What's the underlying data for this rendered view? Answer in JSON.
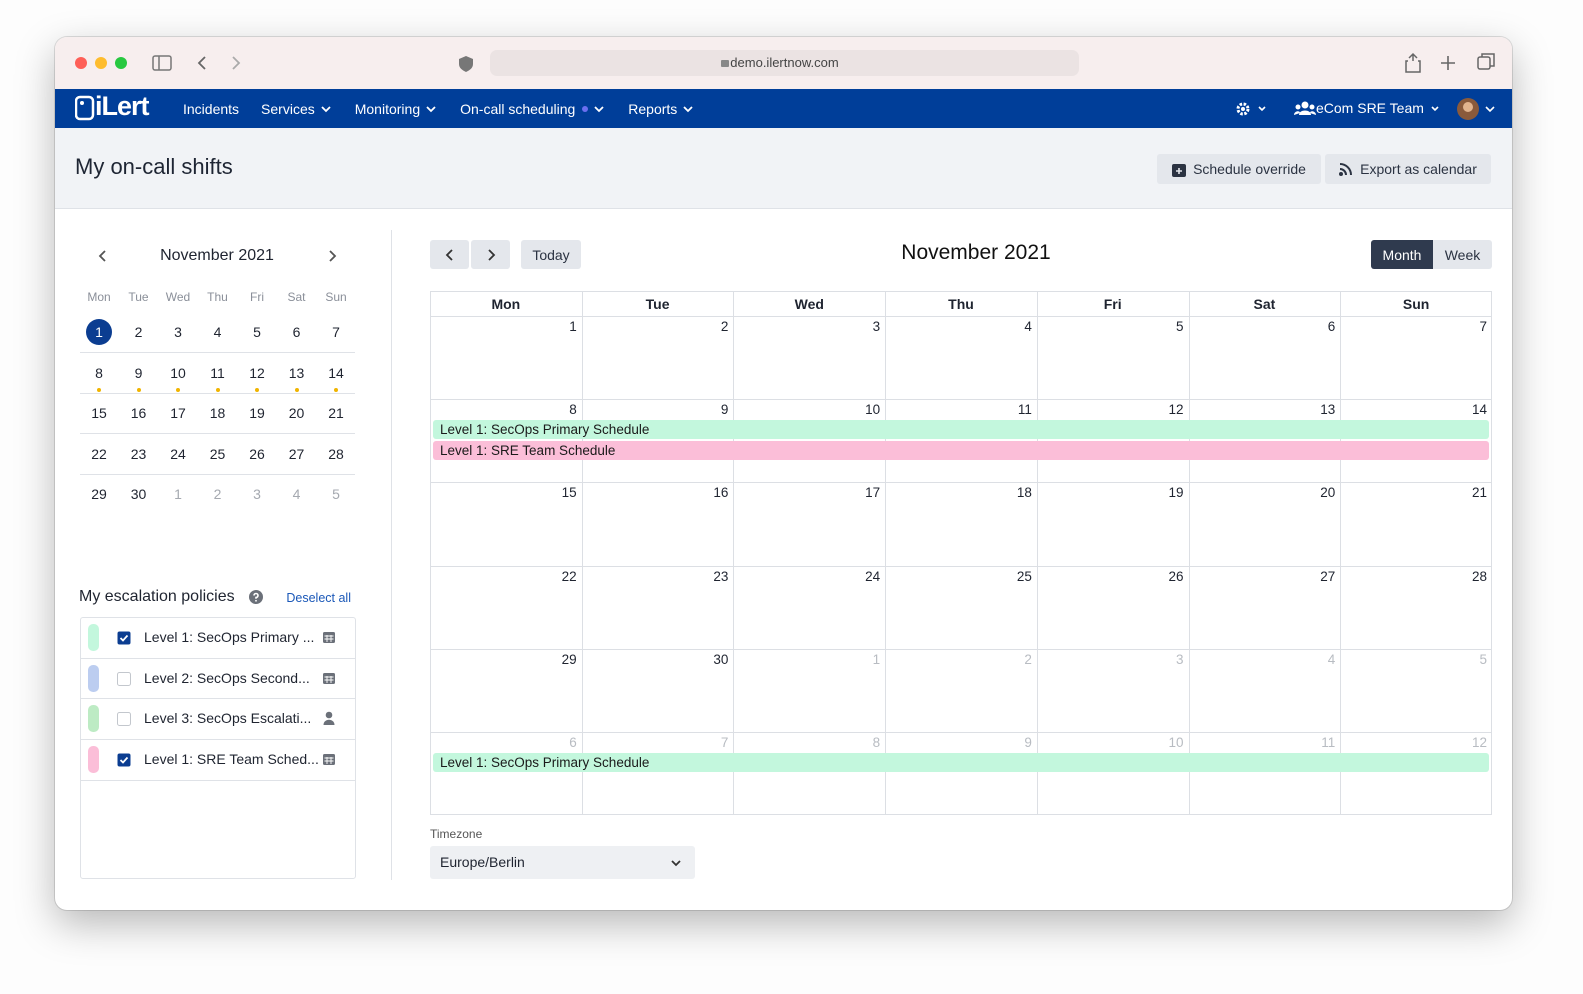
{
  "browser": {
    "url": "demo.ilertnow.com"
  },
  "nav": {
    "logo": "iLert",
    "items": [
      {
        "label": "Incidents",
        "menu": false
      },
      {
        "label": "Services",
        "menu": true
      },
      {
        "label": "Monitoring",
        "menu": true
      },
      {
        "label": "On-call scheduling",
        "menu": true
      },
      {
        "label": "Reports",
        "menu": true
      }
    ],
    "team": "eCom SRE Team"
  },
  "header": {
    "title": "My on-call shifts",
    "buttons": [
      "Schedule override",
      "Export as calendar"
    ]
  },
  "mini_calendar": {
    "month": "November 2021",
    "weekdays": [
      "Mon",
      "Tue",
      "Wed",
      "Thu",
      "Fri",
      "Sat",
      "Sun"
    ],
    "weeks": [
      [
        1,
        2,
        3,
        4,
        5,
        6,
        7
      ],
      [
        8,
        9,
        10,
        11,
        12,
        13,
        14
      ],
      [
        15,
        16,
        17,
        18,
        19,
        20,
        21
      ],
      [
        22,
        23,
        24,
        25,
        26,
        27,
        28
      ],
      [
        29,
        30,
        1,
        2,
        3,
        4,
        5
      ]
    ]
  },
  "policies": {
    "title": "My escalation policies",
    "action": "Deselect all",
    "items": [
      {
        "label": "Level 1: SecOps Primary ...",
        "color": "#c3f7dd",
        "checked": true,
        "icon": "calendar"
      },
      {
        "label": "Level 2: SecOps Second...",
        "color": "#bccdf0",
        "checked": false,
        "icon": "calendar"
      },
      {
        "label": "Level 3: SecOps Escalati...",
        "color": "#bdebc4",
        "checked": false,
        "icon": "user"
      },
      {
        "label": "Level 1: SRE Team Sched...",
        "color": "#fbbed8",
        "checked": true,
        "icon": "calendar"
      }
    ]
  },
  "calendar": {
    "today": "Today",
    "title": "November 2021",
    "views": [
      {
        "label": "Month",
        "active": true
      },
      {
        "label": "Week",
        "active": false
      }
    ],
    "weekdays": [
      "Mon",
      "Tue",
      "Wed",
      "Thu",
      "Fri",
      "Sat",
      "Sun"
    ],
    "weeks": [
      {
        "days": [
          1,
          2,
          3,
          4,
          5,
          6,
          7
        ],
        "events": []
      },
      {
        "days": [
          8,
          9,
          10,
          11,
          12,
          13,
          14
        ],
        "events": [
          {
            "label": "Level 1: SecOps Primary Schedule",
            "color": "#c3f7dd"
          },
          {
            "label": "Level 1: SRE Team Schedule",
            "color": "#fbbed8"
          }
        ]
      },
      {
        "days": [
          15,
          16,
          17,
          18,
          19,
          20,
          21
        ],
        "events": []
      },
      {
        "days": [
          22,
          23,
          24,
          25,
          26,
          27,
          28
        ],
        "events": []
      },
      {
        "days": [
          29,
          30,
          1,
          2,
          3,
          4,
          5
        ],
        "events": []
      },
      {
        "days": [
          6,
          7,
          8,
          9,
          10,
          11,
          12
        ],
        "events": [
          {
            "label": "Level 1: SecOps Primary Schedule",
            "color": "#c3f7dd"
          }
        ]
      }
    ]
  },
  "timezone": {
    "label": "Timezone",
    "value": "Europe/Berlin"
  }
}
